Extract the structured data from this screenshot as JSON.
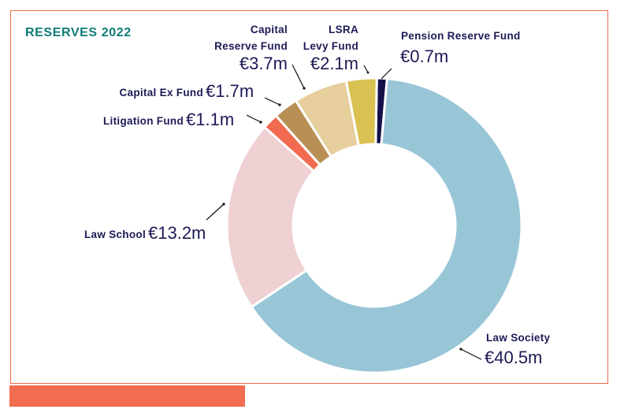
{
  "chart_data": {
    "type": "pie",
    "subtype": "donut",
    "title": "RESERVES 2022",
    "unit": "€m",
    "start_angle_deg": 0,
    "direction": "clockwise",
    "slices": [
      {
        "key": "pension",
        "label_lines": [
          "Pension Reserve Fund"
        ],
        "value": 0.7,
        "value_label": "€0.7m",
        "color": "#14104a"
      },
      {
        "key": "society",
        "label_lines": [
          "Law Society"
        ],
        "value": 40.5,
        "value_label": "€40.5m",
        "color": "#98c6d6"
      },
      {
        "key": "school",
        "label_lines": [
          "Law School"
        ],
        "value": 13.2,
        "value_label": "€13.2m",
        "color": "#efd0d3"
      },
      {
        "key": "litig",
        "label_lines": [
          "Litigation Fund"
        ],
        "value": 1.1,
        "value_label": "€1.1m",
        "color": "#f26b50"
      },
      {
        "key": "capex",
        "label_lines": [
          "Capital Ex Fund"
        ],
        "value": 1.7,
        "value_label": "€1.7m",
        "color": "#b88f55"
      },
      {
        "key": "capres",
        "label_lines": [
          "Capital",
          "Reserve Fund"
        ],
        "value": 3.7,
        "value_label": "€3.7m",
        "color": "#e6cf9d"
      },
      {
        "key": "lsra",
        "label_lines": [
          "LSRA",
          "Levy Fund"
        ],
        "value": 2.1,
        "value_label": "€2.1m",
        "color": "#d9c152"
      }
    ]
  }
}
